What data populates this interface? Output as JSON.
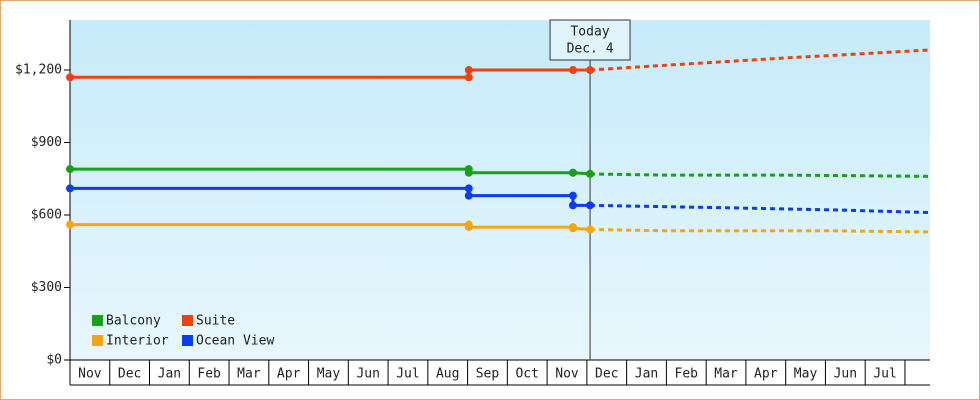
{
  "chart_data": {
    "type": "line",
    "categories": [
      "Nov",
      "Dec",
      "Jan",
      "Feb",
      "Mar",
      "Apr",
      "May",
      "Jun",
      "Jul",
      "Aug",
      "Sep",
      "Oct",
      "Nov",
      "Dec",
      "Jan",
      "Feb",
      "Mar",
      "Apr",
      "May",
      "Jun",
      "Jul"
    ],
    "xlim": [
      0,
      21.63
    ],
    "ylim": [
      0,
      1407
    ],
    "yticks": [
      {
        "value": 0,
        "label": "$0"
      },
      {
        "value": 300,
        "label": "$300"
      },
      {
        "value": 600,
        "label": "$600"
      },
      {
        "value": 900,
        "label": "$900"
      },
      {
        "value": 1200,
        "label": "$1,200"
      }
    ],
    "today": {
      "x": 13.08,
      "label": "Today",
      "date": "Dec. 4"
    },
    "legend": "bottom-left",
    "series": [
      {
        "name": "Balcony",
        "color": "#18a018",
        "x": [
          0,
          10.03,
          10.03,
          12.65,
          12.65,
          13.08
        ],
        "values": [
          790,
          790,
          775,
          775,
          775,
          770
        ],
        "forecast": {
          "x": [
            13.08,
            15,
            18,
            21.63
          ],
          "values": [
            770,
            765,
            765,
            760
          ]
        }
      },
      {
        "name": "Suite",
        "color": "#f0400c",
        "x": [
          0,
          10.03,
          10.03,
          12.65,
          13.08
        ],
        "values": [
          1170,
          1170,
          1200,
          1200,
          1200
        ],
        "forecast": {
          "x": [
            13.08,
            15,
            18,
            21.63
          ],
          "values": [
            1200,
            1220,
            1250,
            1283
          ]
        }
      },
      {
        "name": "Interior",
        "color": "#f5a512",
        "x": [
          0,
          10.03,
          10.03,
          12.65,
          12.65,
          13.08
        ],
        "values": [
          560,
          560,
          550,
          550,
          545,
          540
        ],
        "forecast": {
          "x": [
            13.08,
            15,
            19,
            21.63
          ],
          "values": [
            540,
            535,
            535,
            530
          ]
        }
      },
      {
        "name": "Ocean View",
        "color": "#0a3cf0",
        "x": [
          0,
          10.03,
          10.03,
          12.65,
          12.65,
          13.08
        ],
        "values": [
          710,
          710,
          680,
          680,
          640,
          640
        ],
        "forecast": {
          "x": [
            13.08,
            16.5,
            19.5,
            21.63
          ],
          "values": [
            640,
            630,
            620,
            610
          ]
        }
      }
    ]
  }
}
